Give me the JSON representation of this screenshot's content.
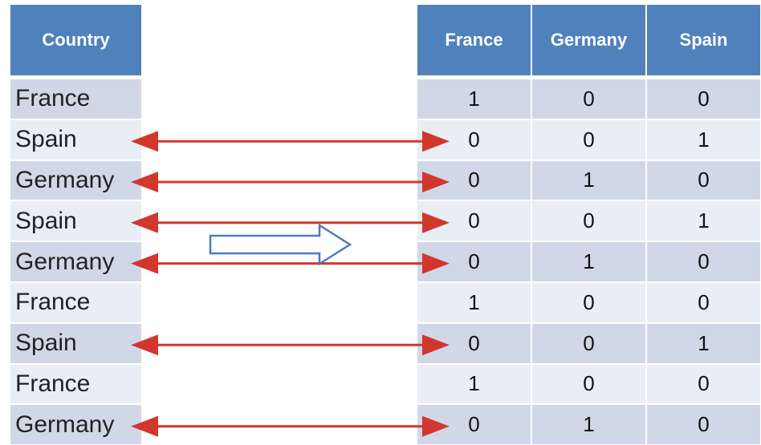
{
  "left_table": {
    "header": "Country",
    "rows": [
      "France",
      "Spain",
      "Germany",
      "Spain",
      "Germany",
      "France",
      "Spain",
      "France",
      "Germany"
    ]
  },
  "right_table": {
    "headers": [
      "France",
      "Germany",
      "Spain"
    ],
    "rows": [
      [
        "1",
        "0",
        "0"
      ],
      [
        "0",
        "0",
        "1"
      ],
      [
        "0",
        "1",
        "0"
      ],
      [
        "0",
        "0",
        "1"
      ],
      [
        "0",
        "1",
        "0"
      ],
      [
        "1",
        "0",
        "0"
      ],
      [
        "0",
        "0",
        "1"
      ],
      [
        "1",
        "0",
        "0"
      ],
      [
        "0",
        "1",
        "0"
      ]
    ]
  },
  "arrows": {
    "mapped_rows": [
      1,
      2,
      3,
      4,
      6,
      8
    ],
    "arrow_color": "#d1372d",
    "transform_arrow_color": "#4a7cbf"
  },
  "colors": {
    "header": "#4f81bd",
    "row_dark": "#d0d8e8",
    "row_light": "#e9edf4"
  }
}
